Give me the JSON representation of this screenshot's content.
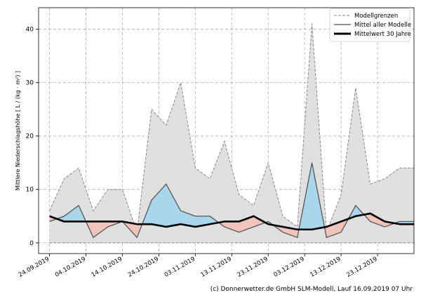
{
  "chart_data": {
    "type": "area",
    "ylabel": "Mittlere Niederschlagshöhe [ L / (kg · m²) ]",
    "ylim": [
      -2,
      44
    ],
    "yticks": [
      0,
      10,
      20,
      30,
      40
    ],
    "x_tick_labels": [
      "24.09.2019",
      "04.10.2019",
      "14.10.2019",
      "24.10.2019",
      "03.11.2019",
      "13.11.2019",
      "23.11.2019",
      "03.12.2019",
      "13.12.2019",
      "23.12.2019"
    ],
    "x_dates": [
      "2019-09-24",
      "2019-09-28",
      "2019-10-02",
      "2019-10-06",
      "2019-10-10",
      "2019-10-14",
      "2019-10-18",
      "2019-10-22",
      "2019-10-26",
      "2019-10-30",
      "2019-11-03",
      "2019-11-07",
      "2019-11-11",
      "2019-11-15",
      "2019-11-19",
      "2019-11-23",
      "2019-11-27",
      "2019-12-01",
      "2019-12-05",
      "2019-12-09",
      "2019-12-13",
      "2019-12-17",
      "2019-12-21",
      "2019-12-25",
      "2019-12-29",
      "2020-01-02"
    ],
    "grid": true,
    "legend_position": "top-right",
    "legend": [
      "Modellgrenzen",
      "Mittel aller Modelle",
      "Mittelwert 30 Jahre"
    ],
    "series": [
      {
        "name": "Modellgrenzen",
        "style": "dashed-grey",
        "values_upper": [
          6,
          12,
          14,
          6,
          10,
          10,
          2,
          25,
          22,
          30,
          14,
          12,
          19,
          9,
          7,
          15,
          5,
          3,
          41,
          2,
          9,
          29,
          11,
          12,
          14,
          14
        ],
        "values_lower": [
          0,
          0,
          0,
          0,
          0,
          0,
          0,
          0,
          0,
          0,
          0,
          0,
          0,
          0,
          0,
          0,
          0,
          0,
          0,
          0,
          0,
          0,
          0,
          0,
          0,
          0
        ]
      },
      {
        "name": "Mittel aller Modelle",
        "style": "solid-grey",
        "values": [
          4,
          5,
          7,
          1,
          3,
          4,
          1,
          8,
          11,
          6,
          5,
          5,
          3,
          2,
          3,
          4,
          2,
          1,
          15,
          1,
          2,
          7,
          4,
          3,
          4,
          4
        ]
      },
      {
        "name": "Mittelwert 30 Jahre",
        "style": "thick-black",
        "values": [
          5,
          4,
          4,
          4,
          4,
          4,
          3.5,
          3.5,
          3,
          3.5,
          3,
          3.5,
          4,
          4,
          5,
          3.5,
          3,
          2.5,
          2.5,
          3,
          4,
          5,
          5.5,
          4,
          3.5,
          3.5
        ]
      }
    ],
    "colors": {
      "envelope_fill": "#e0e0e0",
      "envelope_line": "#8a8a8a",
      "above_normal_fill": "#a9d6ea",
      "below_normal_fill": "#f0c4ba",
      "mean_line": "#555555",
      "climate_line": "#000000"
    }
  },
  "credit": "(c) Donnerwetter.de GmbH SLM-Modell, Lauf 16.09.2019 07 Uhr"
}
